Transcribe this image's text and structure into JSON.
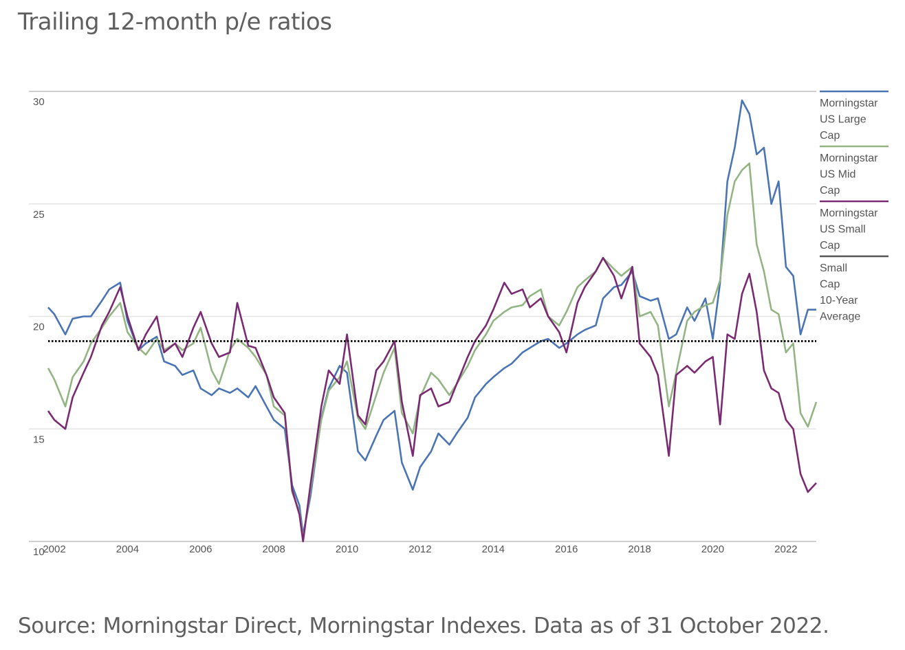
{
  "title": "Trailing 12-month p/e ratios",
  "source": "Source: Morningstar Direct, Morningstar Indexes. Data as of 31 October 2022.",
  "chart_data": {
    "type": "line",
    "xlim": [
      2001.83,
      2022.83
    ],
    "ylim": [
      10,
      30
    ],
    "yticks": [
      30,
      25,
      20,
      15,
      10
    ],
    "xticks": [
      2002,
      2004,
      2006,
      2008,
      2010,
      2012,
      2014,
      2016,
      2018,
      2020,
      2022
    ],
    "grid": true,
    "legend_position": "right",
    "series": [
      {
        "name": "Morningstar US Large Cap",
        "color": "#4a74b4",
        "x": [
          2001.83,
          2002.0,
          2002.3,
          2002.5,
          2002.8,
          2003.0,
          2003.3,
          2003.5,
          2003.8,
          2004.0,
          2004.3,
          2004.5,
          2004.8,
          2005.0,
          2005.3,
          2005.5,
          2005.8,
          2006.0,
          2006.3,
          2006.5,
          2006.8,
          2007.0,
          2007.3,
          2007.5,
          2007.8,
          2008.0,
          2008.3,
          2008.5,
          2008.7,
          2008.8,
          2009.0,
          2009.3,
          2009.5,
          2009.8,
          2010.0,
          2010.3,
          2010.5,
          2010.8,
          2011.0,
          2011.3,
          2011.5,
          2011.8,
          2012.0,
          2012.3,
          2012.5,
          2012.8,
          2013.0,
          2013.3,
          2013.5,
          2013.8,
          2014.0,
          2014.3,
          2014.5,
          2014.8,
          2015.0,
          2015.3,
          2015.5,
          2015.8,
          2016.0,
          2016.3,
          2016.5,
          2016.8,
          2017.0,
          2017.3,
          2017.5,
          2017.8,
          2018.0,
          2018.3,
          2018.5,
          2018.8,
          2019.0,
          2019.3,
          2019.5,
          2019.8,
          2020.0,
          2020.2,
          2020.4,
          2020.6,
          2020.8,
          2021.0,
          2021.2,
          2021.4,
          2021.6,
          2021.8,
          2022.0,
          2022.2,
          2022.4,
          2022.6,
          2022.83
        ],
        "values": [
          20.4,
          20.1,
          19.2,
          19.9,
          20.0,
          20.0,
          20.7,
          21.2,
          21.5,
          19.8,
          18.5,
          18.8,
          19.1,
          18.0,
          17.8,
          17.4,
          17.6,
          16.8,
          16.5,
          16.8,
          16.6,
          16.8,
          16.4,
          16.9,
          16.0,
          15.4,
          15.0,
          12.5,
          11.6,
          10.3,
          12.0,
          15.5,
          16.8,
          17.8,
          17.5,
          14.0,
          13.6,
          14.7,
          15.4,
          15.8,
          13.5,
          12.3,
          13.3,
          14.0,
          14.8,
          14.3,
          14.8,
          15.5,
          16.4,
          17.0,
          17.3,
          17.7,
          17.9,
          18.4,
          18.6,
          18.9,
          19.0,
          18.6,
          18.8,
          19.2,
          19.4,
          19.6,
          20.8,
          21.3,
          21.4,
          22.0,
          20.9,
          20.7,
          20.8,
          19.0,
          19.2,
          20.4,
          19.8,
          20.8,
          19.0,
          21.5,
          26.0,
          27.5,
          29.6,
          29.0,
          27.2,
          27.5,
          25.0,
          26.0,
          22.2,
          21.8,
          19.2,
          20.3,
          20.3
        ]
      },
      {
        "name": "Morningstar US Mid Cap",
        "color": "#93b583",
        "x": [
          2001.83,
          2002.0,
          2002.3,
          2002.5,
          2002.8,
          2003.0,
          2003.3,
          2003.5,
          2003.8,
          2004.0,
          2004.3,
          2004.5,
          2004.8,
          2005.0,
          2005.3,
          2005.5,
          2005.8,
          2006.0,
          2006.3,
          2006.5,
          2006.8,
          2007.0,
          2007.3,
          2007.5,
          2007.8,
          2008.0,
          2008.3,
          2008.5,
          2008.7,
          2008.8,
          2009.0,
          2009.3,
          2009.5,
          2009.8,
          2010.0,
          2010.3,
          2010.5,
          2010.8,
          2011.0,
          2011.3,
          2011.5,
          2011.8,
          2012.0,
          2012.3,
          2012.5,
          2012.8,
          2013.0,
          2013.3,
          2013.5,
          2013.8,
          2014.0,
          2014.3,
          2014.5,
          2014.8,
          2015.0,
          2015.3,
          2015.5,
          2015.8,
          2016.0,
          2016.3,
          2016.5,
          2016.8,
          2017.0,
          2017.3,
          2017.5,
          2017.8,
          2018.0,
          2018.3,
          2018.5,
          2018.8,
          2019.0,
          2019.3,
          2019.5,
          2019.8,
          2020.0,
          2020.2,
          2020.4,
          2020.6,
          2020.8,
          2021.0,
          2021.2,
          2021.4,
          2021.6,
          2021.8,
          2022.0,
          2022.2,
          2022.4,
          2022.6,
          2022.83
        ],
        "values": [
          17.7,
          17.2,
          16.0,
          17.3,
          18.0,
          18.8,
          19.5,
          20.0,
          20.6,
          19.3,
          18.6,
          18.3,
          19.0,
          18.5,
          18.8,
          18.5,
          18.8,
          19.5,
          17.6,
          17.0,
          18.5,
          19.0,
          18.6,
          18.2,
          17.4,
          16.0,
          15.6,
          12.2,
          11.3,
          10.1,
          12.3,
          15.4,
          16.7,
          17.3,
          18.0,
          15.5,
          15.0,
          16.5,
          17.5,
          18.6,
          15.7,
          14.8,
          16.4,
          17.5,
          17.2,
          16.5,
          17.0,
          17.8,
          18.5,
          19.2,
          19.8,
          20.2,
          20.4,
          20.5,
          20.9,
          21.2,
          20.0,
          19.6,
          20.2,
          21.3,
          21.6,
          22.0,
          22.6,
          22.1,
          21.8,
          22.2,
          20.0,
          20.2,
          19.6,
          16.0,
          17.5,
          19.8,
          20.2,
          20.5,
          20.6,
          21.6,
          24.5,
          26.0,
          26.5,
          26.8,
          23.2,
          22.0,
          20.3,
          20.1,
          18.4,
          18.8,
          15.7,
          15.1,
          16.2
        ]
      },
      {
        "name": "Morningstar US Small Cap",
        "color": "#7a2a72",
        "x": [
          2001.83,
          2002.0,
          2002.3,
          2002.5,
          2002.8,
          2003.0,
          2003.3,
          2003.5,
          2003.8,
          2004.0,
          2004.3,
          2004.5,
          2004.8,
          2005.0,
          2005.3,
          2005.5,
          2005.8,
          2006.0,
          2006.3,
          2006.5,
          2006.8,
          2007.0,
          2007.3,
          2007.5,
          2007.8,
          2008.0,
          2008.3,
          2008.5,
          2008.7,
          2008.8,
          2009.0,
          2009.3,
          2009.5,
          2009.8,
          2010.0,
          2010.3,
          2010.5,
          2010.8,
          2011.0,
          2011.3,
          2011.5,
          2011.8,
          2012.0,
          2012.3,
          2012.5,
          2012.8,
          2013.0,
          2013.3,
          2013.5,
          2013.8,
          2014.0,
          2014.3,
          2014.5,
          2014.8,
          2015.0,
          2015.3,
          2015.5,
          2015.8,
          2016.0,
          2016.3,
          2016.5,
          2016.8,
          2017.0,
          2017.3,
          2017.5,
          2017.8,
          2018.0,
          2018.3,
          2018.5,
          2018.8,
          2019.0,
          2019.3,
          2019.5,
          2019.8,
          2020.0,
          2020.2,
          2020.4,
          2020.6,
          2020.8,
          2021.0,
          2021.2,
          2021.4,
          2021.6,
          2021.8,
          2022.0,
          2022.2,
          2022.4,
          2022.6,
          2022.83
        ],
        "values": [
          15.8,
          15.4,
          15.0,
          16.4,
          17.5,
          18.2,
          19.6,
          20.2,
          21.3,
          20.0,
          18.5,
          19.2,
          20.0,
          18.4,
          18.8,
          18.2,
          19.5,
          20.2,
          18.8,
          18.2,
          18.4,
          20.6,
          18.7,
          18.6,
          17.4,
          16.4,
          15.7,
          12.3,
          11.2,
          10.0,
          12.5,
          16.0,
          17.6,
          17.0,
          19.2,
          15.6,
          15.2,
          17.6,
          18.0,
          18.9,
          16.2,
          13.8,
          16.5,
          16.8,
          16.0,
          16.2,
          17.0,
          18.2,
          18.9,
          19.6,
          20.3,
          21.5,
          21.0,
          21.2,
          20.4,
          20.8,
          20.0,
          19.3,
          18.4,
          20.6,
          21.3,
          22.0,
          22.6,
          21.8,
          20.8,
          22.2,
          18.8,
          18.2,
          17.4,
          13.8,
          17.4,
          17.8,
          17.5,
          18.0,
          18.2,
          15.2,
          19.2,
          19.0,
          21.0,
          21.9,
          20.2,
          17.6,
          16.8,
          16.6,
          15.4,
          15.0,
          13.0,
          12.2,
          12.6
        ]
      },
      {
        "name": "Small Cap 10-Year Average",
        "color": "#111111",
        "x": [
          2001.83,
          2022.83
        ],
        "values": [
          18.9,
          18.9
        ]
      }
    ]
  },
  "legend": {
    "items": [
      {
        "lines": [
          "Morningstar",
          "US Large",
          "Cap"
        ],
        "color": "#4a74b4"
      },
      {
        "lines": [
          "Morningstar",
          "US Mid",
          "Cap"
        ],
        "color": "#93b583"
      },
      {
        "lines": [
          "Morningstar",
          "US Small",
          "Cap"
        ],
        "color": "#7a2a72"
      },
      {
        "lines": [
          "Small",
          "Cap",
          "10-Year",
          "Average"
        ],
        "color": "#555555"
      }
    ]
  }
}
